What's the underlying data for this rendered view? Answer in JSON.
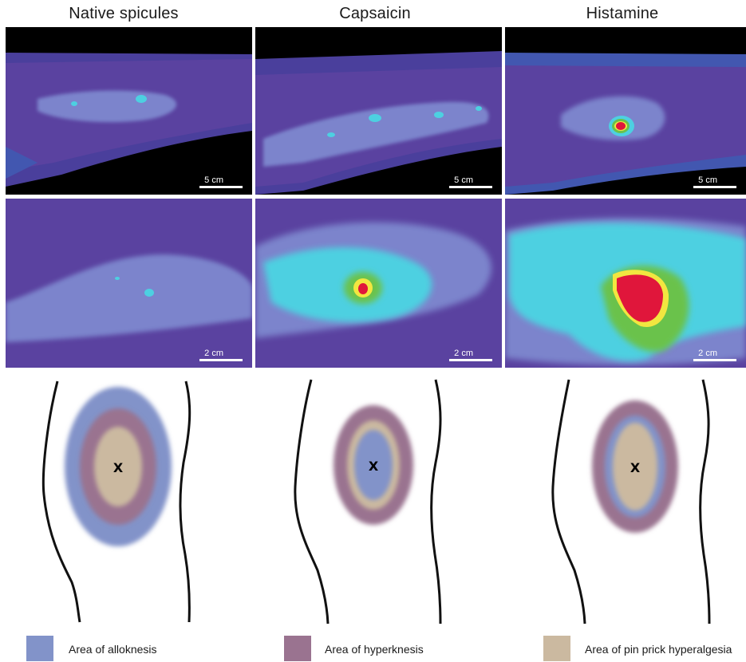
{
  "columns": [
    {
      "title": "Native spicules",
      "top_scale": "5 cm",
      "bottom_scale": "2 cm",
      "marker": "X"
    },
    {
      "title": "Capsaicin",
      "top_scale": "5 cm",
      "bottom_scale": "2 cm",
      "marker": "X"
    },
    {
      "title": "Histamine",
      "top_scale": "5 cm",
      "bottom_scale": "2 cm",
      "marker": "X"
    }
  ],
  "legend": [
    {
      "label": "Area of alloknesis",
      "color": "#8293c9"
    },
    {
      "label": "Area of hyperknesis",
      "color": "#9a7390"
    },
    {
      "label": "Area of pin prick hyperalgesia",
      "color": "#cbb9a0"
    }
  ],
  "colors": {
    "heatmap_base": "#5a42a0",
    "heatmap_mid": "#7b84cc",
    "heatmap_cyan": "#4dd0e1",
    "heatmap_green": "#6ac24b",
    "heatmap_yellow": "#f2e640",
    "heatmap_red": "#e0163b",
    "background_black": "#000000"
  }
}
